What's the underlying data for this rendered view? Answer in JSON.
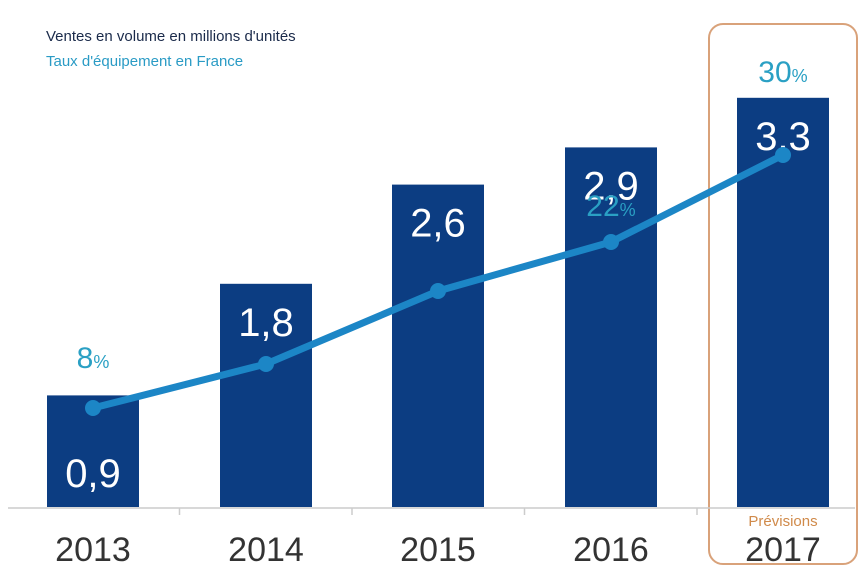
{
  "chart_data": {
    "type": "bar",
    "legend": {
      "bars": "Ventes en volume en millions d'unités",
      "line": "Taux d'équipement en France"
    },
    "categories": [
      "2013",
      "2014",
      "2015",
      "2016",
      "2017"
    ],
    "series": [
      {
        "name": "Ventes en volume en millions d'unités",
        "kind": "bar",
        "values": [
          0.9,
          1.8,
          2.6,
          2.9,
          3.3
        ],
        "labels": [
          "0,9",
          "1,8",
          "2,6",
          "2,9",
          "3,3"
        ]
      },
      {
        "name": "Taux d'équipement en France",
        "kind": "line",
        "values": [
          8,
          14,
          19,
          22,
          30
        ],
        "labels": [
          "8",
          "",
          "",
          "22",
          "30"
        ],
        "unit": "%"
      }
    ],
    "forecast": {
      "category": "2017",
      "label": "Prévisions"
    },
    "colors": {
      "bar": "#0c3d82",
      "line": "#1c86c6",
      "pct_text": "#2aa0c4",
      "forecast_border": "#d9a27a",
      "forecast_text": "#d08a4a",
      "axis": "#cccccc"
    },
    "grid": false
  }
}
